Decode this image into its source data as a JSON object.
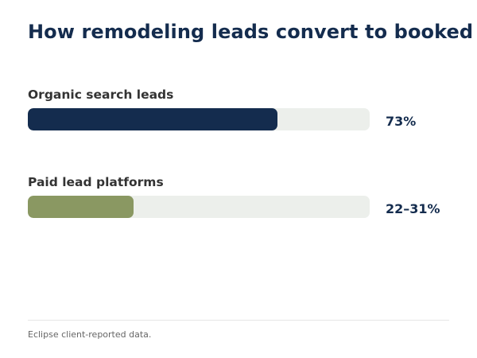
{
  "chart_data": {
    "type": "bar",
    "orientation": "horizontal",
    "title": "How remodeling leads convert to booked",
    "categories": [
      "Organic search leads",
      "Paid lead platforms"
    ],
    "values": [
      73,
      31
    ],
    "value_labels": [
      "73%",
      "22–31%"
    ],
    "ranges": [
      null,
      [
        22,
        31
      ]
    ],
    "xlim": [
      0,
      100
    ],
    "unit": "%",
    "colors": [
      "#142c4e",
      "#8a9862"
    ],
    "track_color": "#ecefeb",
    "grid": false,
    "legend": "none"
  },
  "footnote": "Eclipse client-reported data."
}
